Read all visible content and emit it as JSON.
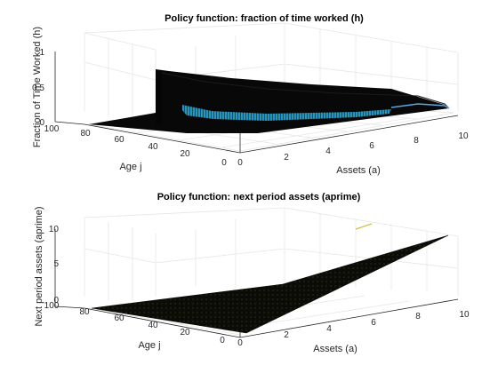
{
  "chart_data": [
    {
      "type": "surface",
      "title": "Policy function: fraction of time worked (h)",
      "xlabel": "Assets (a)",
      "ylabel": "Age j",
      "zlabel": "Fraction of Time Worked (h)",
      "xlim": [
        0,
        10
      ],
      "ylim": [
        0,
        100
      ],
      "zlim": [
        0,
        1
      ],
      "xticks": [
        "0",
        "2",
        "4",
        "6",
        "8",
        "10"
      ],
      "yticks": [
        "0",
        "20",
        "40",
        "60",
        "80",
        "100"
      ],
      "zticks": [
        "0",
        "0.5",
        "1"
      ],
      "grid": true,
      "retirement_age": 45,
      "surface_edges": {
        "working_age_at_zero_assets": [
          {
            "age": 45,
            "h": 0.65
          },
          {
            "age": 0,
            "h": 0.37
          }
        ],
        "age_zero_across_assets": [
          {
            "a": 0,
            "h": 0.37
          },
          {
            "a": 2,
            "h": 0.3
          },
          {
            "a": 4,
            "h": 0.24
          },
          {
            "a": 6,
            "h": 0.2
          },
          {
            "a": 8,
            "h": 0.17
          },
          {
            "a": 10,
            "h": 0.15
          }
        ]
      }
    },
    {
      "type": "surface",
      "title": "Policy function: next period assets (aprime)",
      "xlabel": "Assets (a)",
      "ylabel": "Age j",
      "zlabel": "Next period assets (aprime)",
      "xlim": [
        0,
        10
      ],
      "ylim": [
        0,
        100
      ],
      "zlim": [
        0,
        10
      ],
      "xticks": [
        "0",
        "2",
        "4",
        "6",
        "8",
        "10"
      ],
      "yticks": [
        "0",
        "20",
        "40",
        "60",
        "80",
        "100"
      ],
      "zticks": [
        "0",
        "5",
        "10"
      ],
      "grid": true,
      "surface_corners": [
        {
          "a": 0,
          "age": 100,
          "aprime": 0
        },
        {
          "a": 10,
          "age": 100,
          "aprime": 0
        },
        {
          "a": 10,
          "age": 0,
          "aprime": 7.5
        },
        {
          "a": 0,
          "age": 0,
          "aprime": 0
        }
      ]
    }
  ]
}
